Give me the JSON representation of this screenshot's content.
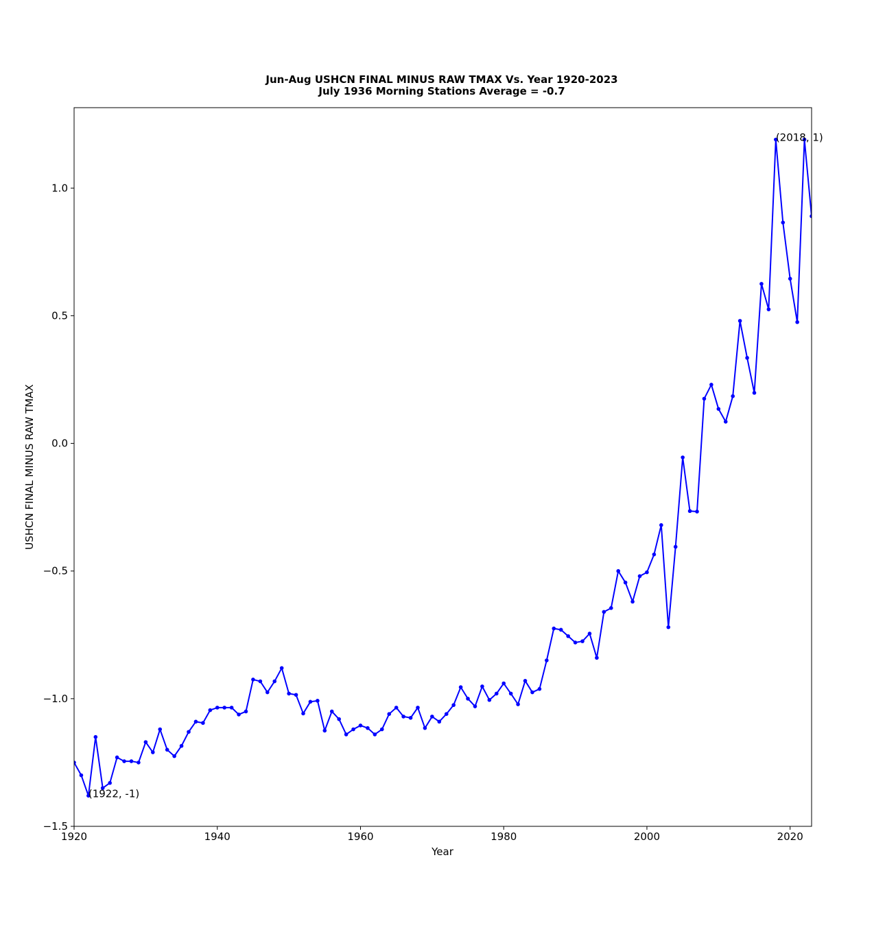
{
  "chart_data": {
    "type": "line",
    "title": "Jun-Aug USHCN FINAL MINUS RAW TMAX Vs. Year 1920-2023",
    "subtitle": "July 1936 Morning Stations  Average = -0.7",
    "xlabel": "Year",
    "ylabel": "USHCN FINAL MINUS RAW TMAX",
    "xlim": [
      1920,
      2023
    ],
    "ylim": [
      -1.5,
      1.315
    ],
    "grid": false,
    "color": "#0000ff",
    "x_ticks": [
      {
        "value": 1920,
        "label": "1920"
      },
      {
        "value": 1940,
        "label": "1940"
      },
      {
        "value": 1960,
        "label": "1960"
      },
      {
        "value": 1980,
        "label": "1980"
      },
      {
        "value": 2000,
        "label": "2000"
      },
      {
        "value": 2020,
        "label": "2020"
      }
    ],
    "y_ticks": [
      {
        "value": -1.5,
        "label": "−1.5"
      },
      {
        "value": -1.0,
        "label": "−1.0"
      },
      {
        "value": -0.5,
        "label": "−0.5"
      },
      {
        "value": 0.0,
        "label": "0.0"
      },
      {
        "value": 0.5,
        "label": "0.5"
      },
      {
        "value": 1.0,
        "label": "1.0"
      }
    ],
    "series": [
      {
        "x": [
          1920,
          1921,
          1922,
          1923,
          1924,
          1925,
          1926,
          1927,
          1928,
          1929,
          1930,
          1931,
          1932,
          1933,
          1934,
          1935,
          1936,
          1937,
          1938,
          1939,
          1940,
          1941,
          1942,
          1943,
          1944,
          1945,
          1946,
          1947,
          1948,
          1949,
          1950,
          1951,
          1952,
          1953,
          1954,
          1955,
          1956,
          1957,
          1958,
          1959,
          1960,
          1961,
          1962,
          1963,
          1964,
          1965,
          1966,
          1967,
          1968,
          1969,
          1970,
          1971,
          1972,
          1973,
          1974,
          1975,
          1976,
          1977,
          1978,
          1979,
          1980,
          1981,
          1982,
          1983,
          1984,
          1985,
          1986,
          1987,
          1988,
          1989,
          1990,
          1991,
          1992,
          1993,
          1994,
          1995,
          1996,
          1997,
          1998,
          1999,
          2000,
          2001,
          2002,
          2003,
          2004,
          2005,
          2006,
          2007,
          2008,
          2009,
          2010,
          2011,
          2012,
          2013,
          2014,
          2015,
          2016,
          2017,
          2018,
          2019,
          2020,
          2021,
          2022,
          2023
        ],
        "y": [
          -1.25,
          -1.3,
          -1.38,
          -1.15,
          -1.35,
          -1.33,
          -1.23,
          -1.245,
          -1.245,
          -1.25,
          -1.17,
          -1.21,
          -1.12,
          -1.2,
          -1.225,
          -1.185,
          -1.13,
          -1.09,
          -1.095,
          -1.045,
          -1.035,
          -1.035,
          -1.035,
          -1.062,
          -1.05,
          -0.925,
          -0.932,
          -0.975,
          -0.932,
          -0.88,
          -0.98,
          -0.985,
          -1.058,
          -1.012,
          -1.008,
          -1.125,
          -1.05,
          -1.08,
          -1.14,
          -1.12,
          -1.105,
          -1.115,
          -1.14,
          -1.12,
          -1.06,
          -1.035,
          -1.07,
          -1.075,
          -1.035,
          -1.115,
          -1.07,
          -1.09,
          -1.06,
          -1.025,
          -0.955,
          -1.0,
          -1.03,
          -0.952,
          -1.005,
          -0.98,
          -0.94,
          -0.98,
          -1.022,
          -0.93,
          -0.975,
          -0.962,
          -0.85,
          -0.725,
          -0.73,
          -0.755,
          -0.78,
          -0.775,
          -0.745,
          -0.84,
          -0.66,
          -0.645,
          -0.5,
          -0.545,
          -0.62,
          -0.52,
          -0.505,
          -0.435,
          -0.32,
          -0.72,
          -0.405,
          -0.055,
          -0.265,
          -0.267,
          0.175,
          0.23,
          0.135,
          0.085,
          0.185,
          0.48,
          0.335,
          0.198,
          0.625,
          0.525,
          1.19,
          0.865,
          0.645,
          0.475,
          1.19,
          0.89
        ]
      }
    ],
    "annotations": [
      {
        "x": 1922,
        "y": -1.38,
        "text": "(1922, -1)"
      },
      {
        "x": 2018,
        "y": 1.19,
        "text": "(2018, 1)"
      }
    ]
  }
}
